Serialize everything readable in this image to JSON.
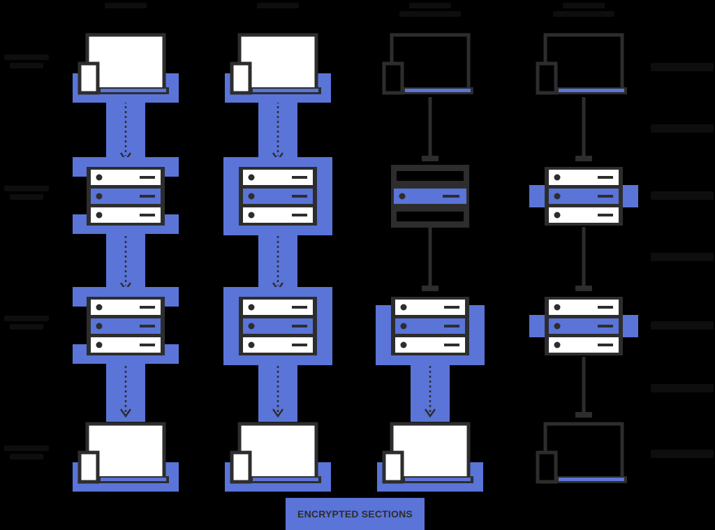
{
  "colors": {
    "background": "#000000",
    "encrypted": "#5a74d8",
    "outline": "#2d2d2d",
    "fill": "#ffffff"
  },
  "legend": {
    "label": "ENCRYPTED SECTIONS"
  },
  "columns": [
    {
      "id": "col1",
      "nodes": [
        {
          "kind": "laptop",
          "style": "filled",
          "encrypted": true
        },
        {
          "kind": "server",
          "style": "stack",
          "encrypted": "wide-ends"
        },
        {
          "kind": "server",
          "style": "stack",
          "encrypted": "wide-ends"
        },
        {
          "kind": "laptop",
          "style": "filled",
          "encrypted": true
        }
      ],
      "links": [
        "encrypted",
        "encrypted",
        "encrypted"
      ]
    },
    {
      "id": "col2",
      "nodes": [
        {
          "kind": "laptop",
          "style": "filled",
          "encrypted": true
        },
        {
          "kind": "server",
          "style": "stack",
          "encrypted": "full"
        },
        {
          "kind": "server",
          "style": "stack",
          "encrypted": "full"
        },
        {
          "kind": "laptop",
          "style": "filled",
          "encrypted": true
        }
      ],
      "links": [
        "encrypted",
        "encrypted",
        "encrypted"
      ]
    },
    {
      "id": "col3",
      "nodes": [
        {
          "kind": "laptop",
          "style": "outline",
          "encrypted": false
        },
        {
          "kind": "server",
          "style": "dark-single",
          "encrypted": "middle-row"
        },
        {
          "kind": "server",
          "style": "stack",
          "encrypted": "full-wide"
        },
        {
          "kind": "laptop",
          "style": "filled",
          "encrypted": true
        }
      ],
      "links": [
        "plain",
        "plain",
        "encrypted"
      ]
    },
    {
      "id": "col4",
      "nodes": [
        {
          "kind": "laptop",
          "style": "outline",
          "encrypted": false
        },
        {
          "kind": "server",
          "style": "stack",
          "encrypted": "middle-row-wide"
        },
        {
          "kind": "server",
          "style": "stack",
          "encrypted": "middle-row-wide"
        },
        {
          "kind": "laptop",
          "style": "outline",
          "encrypted": false
        }
      ],
      "links": [
        "plain",
        "plain",
        "plain"
      ]
    }
  ]
}
